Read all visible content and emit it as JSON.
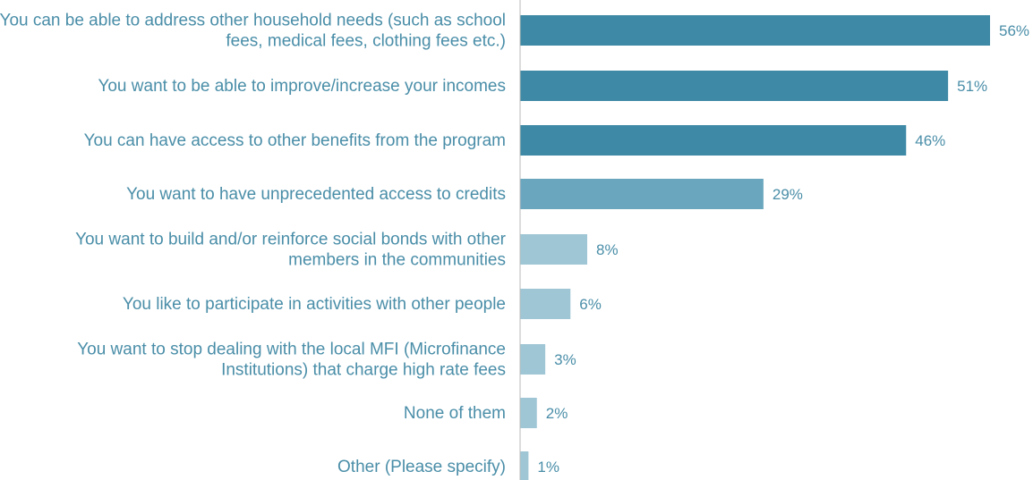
{
  "chart_data": {
    "type": "bar",
    "orientation": "horizontal",
    "categories": [
      [
        "You can be able to address other household needs (such as school",
        "fees, medical fees, clothing fees etc.)"
      ],
      [
        "You want to be able to improve/increase your incomes"
      ],
      [
        "You can have access to other benefits from the program"
      ],
      [
        "You want to have unprecedented access to credits"
      ],
      [
        "You want to build and/or reinforce social bonds with other",
        "members in the communities"
      ],
      [
        "You like to participate in activities with other people"
      ],
      [
        "You want to stop dealing with the local MFI (Microfinance",
        "Institutions) that charge high rate fees"
      ],
      [
        "None of them"
      ],
      [
        "Other (Please specify)"
      ]
    ],
    "values": [
      56,
      51,
      46,
      29,
      8,
      6,
      3,
      2,
      1
    ],
    "value_labels": [
      "56%",
      "51%",
      "46%",
      "29%",
      "8%",
      "6%",
      "3%",
      "2%",
      "1%"
    ],
    "bar_colors": [
      "#3e89a5",
      "#3e89a5",
      "#3e89a5",
      "#6aa7be",
      "#9fc6d5",
      "#9fc6d5",
      "#9fc6d5",
      "#9fc6d5",
      "#9fc6d5"
    ],
    "axis_color": "#b9b9b9",
    "label_color": "#4a8ea8",
    "xlim": [
      0,
      56
    ],
    "grid": false,
    "legend": "none"
  }
}
